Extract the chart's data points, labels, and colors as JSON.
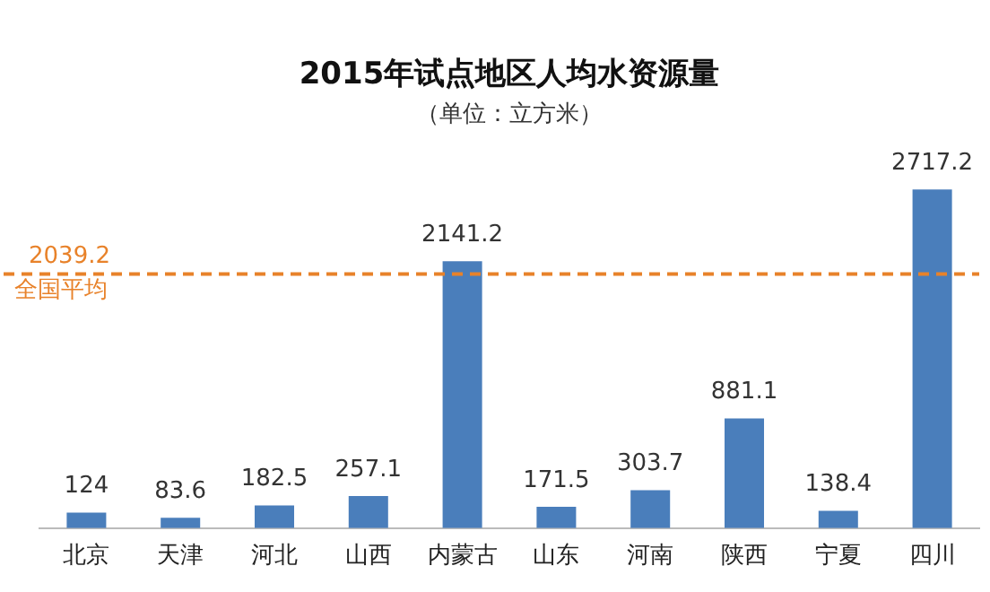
{
  "chart_data": {
    "type": "bar",
    "title": "2015年试点地区人均水资源量",
    "subtitle": "（单位：立方米）",
    "categories": [
      "北京",
      "天津",
      "河北",
      "山西",
      "内蒙古",
      "山东",
      "河南",
      "陕西",
      "宁夏",
      "四川"
    ],
    "values": [
      124,
      83.6,
      182.5,
      257.1,
      2141.2,
      171.5,
      303.7,
      881.1,
      138.4,
      2717.2
    ],
    "color": "#4a7ebb",
    "tick_labels": "x",
    "annotations": [
      {
        "text": "2039.2",
        "y": 2039.2
      }
    ],
    "grid": false,
    "legend": false,
    "data_labels": true,
    "ref_lines": [
      {
        "axis": "y",
        "value": 2039.2,
        "label": "全国平均",
        "color": "#e8822a",
        "line_style": "dashed"
      }
    ]
  }
}
